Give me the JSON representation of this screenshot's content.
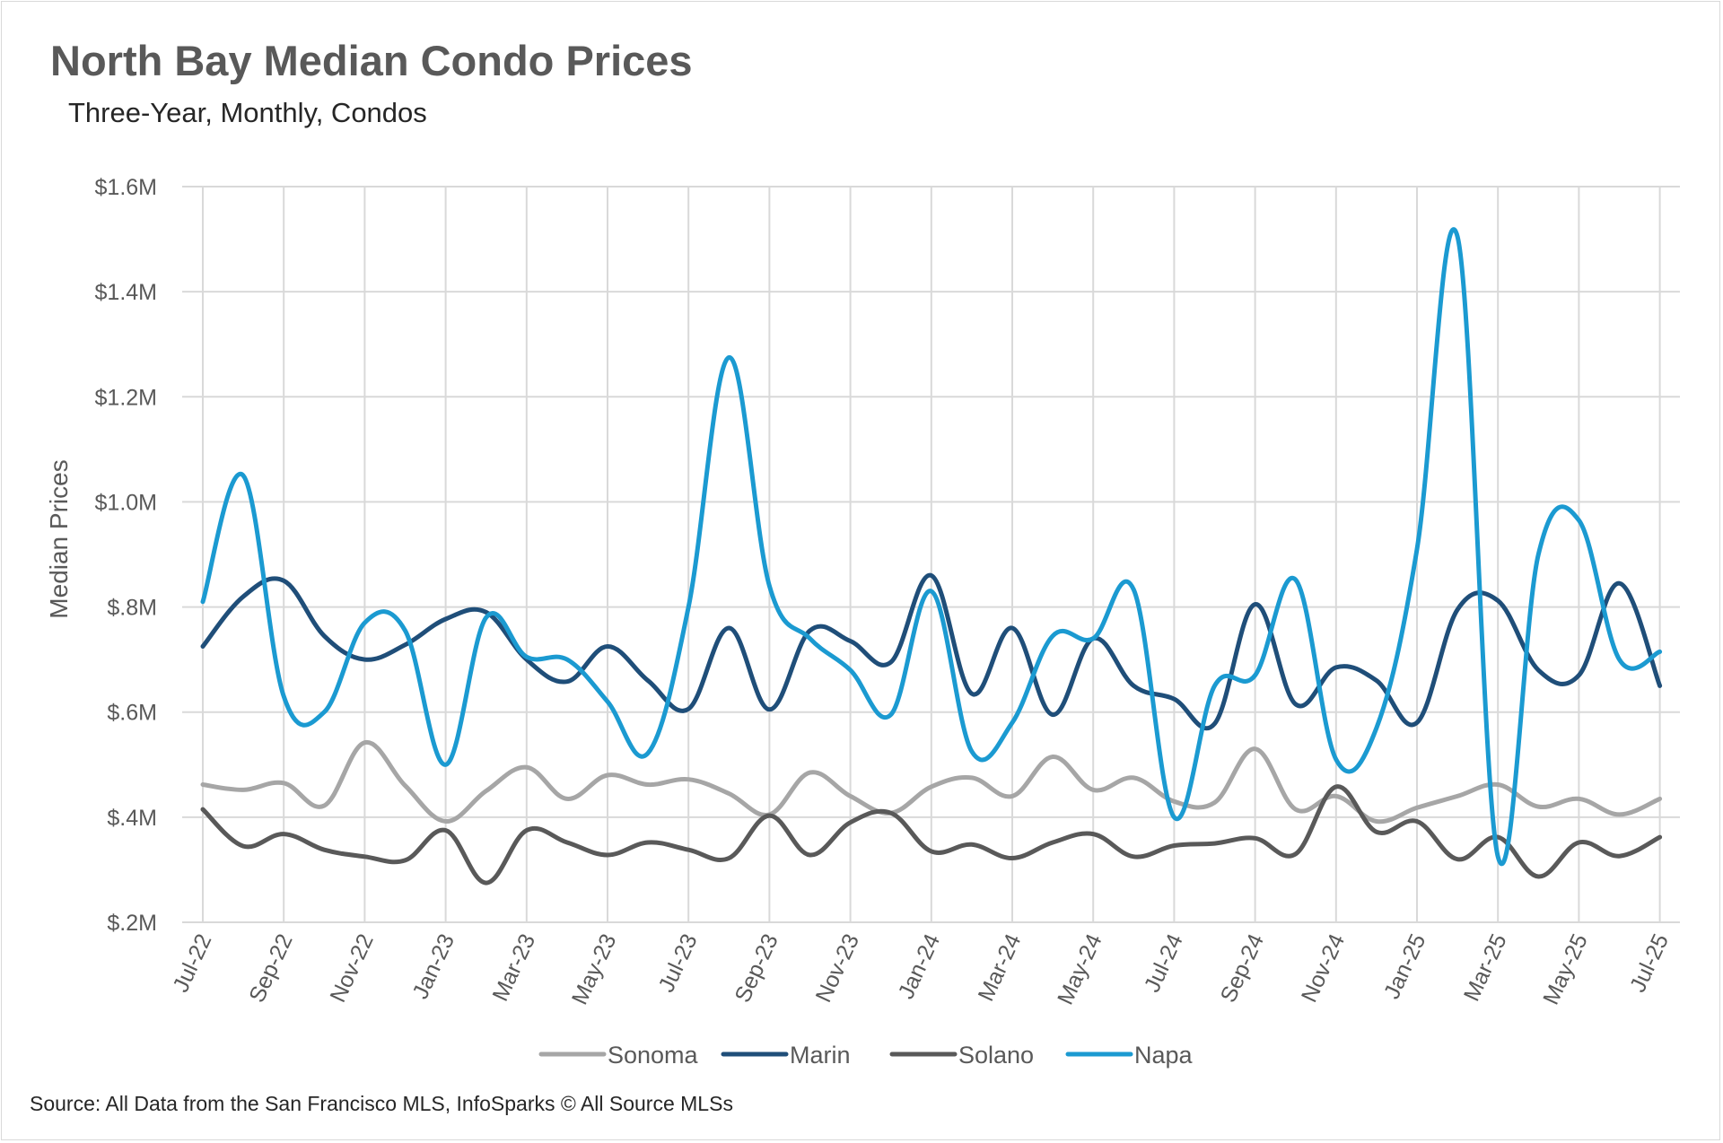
{
  "header": {
    "title": "North Bay Median Condo Prices",
    "subtitle": "Three-Year, Monthly, Condos"
  },
  "footer": {
    "source": "Source: All Data from the San Francisco MLS, InfoSparks © All Source MLSs"
  },
  "chart_data": {
    "type": "line",
    "title": "North Bay Median Condo Prices",
    "subtitle": "Three-Year, Monthly, Condos",
    "xlabel": "",
    "ylabel": "Median Prices",
    "ylim": [
      200000,
      1600000
    ],
    "y_ticks": [
      {
        "value": 200000,
        "label": "$.2M"
      },
      {
        "value": 400000,
        "label": "$.4M"
      },
      {
        "value": 600000,
        "label": "$.6M"
      },
      {
        "value": 800000,
        "label": "$.8M"
      },
      {
        "value": 1000000,
        "label": "$1.0M"
      },
      {
        "value": 1200000,
        "label": "$1.2M"
      },
      {
        "value": 1400000,
        "label": "$1.4M"
      },
      {
        "value": 1600000,
        "label": "$1.6M"
      }
    ],
    "x": [
      "2022-07",
      "2022-08",
      "2022-09",
      "2022-10",
      "2022-11",
      "2022-12",
      "2023-01",
      "2023-02",
      "2023-03",
      "2023-04",
      "2023-05",
      "2023-06",
      "2023-07",
      "2023-08",
      "2023-09",
      "2023-10",
      "2023-11",
      "2023-12",
      "2024-01",
      "2024-02",
      "2024-03",
      "2024-04",
      "2024-05",
      "2024-06",
      "2024-07",
      "2024-08",
      "2024-09",
      "2024-10",
      "2024-11",
      "2024-12",
      "2025-01",
      "2025-02",
      "2025-03",
      "2025-04",
      "2025-05",
      "2025-06",
      "2025-07"
    ],
    "x_tick_labels": [
      "Jul-22",
      "Sep-22",
      "Nov-22",
      "Jan-23",
      "Mar-23",
      "May-23",
      "Jul-23",
      "Sep-23",
      "Nov-23",
      "Jan-24",
      "Mar-24",
      "May-24",
      "Jul-24",
      "Sep-24",
      "Nov-24",
      "Jan-25",
      "Mar-25",
      "May-25",
      "Jul-25"
    ],
    "grid": true,
    "legend_position": "bottom",
    "series": [
      {
        "name": "Sonoma",
        "color": "#a6a6a6",
        "values": [
          462000,
          452000,
          465000,
          422000,
          542000,
          460000,
          392000,
          450000,
          495000,
          435000,
          480000,
          462000,
          472000,
          445000,
          405000,
          485000,
          440000,
          408000,
          458000,
          475000,
          440000,
          515000,
          452000,
          475000,
          430000,
          428000,
          530000,
          415000,
          440000,
          392000,
          418000,
          440000,
          462000,
          420000,
          435000,
          405000,
          435000
        ]
      },
      {
        "name": "Marin",
        "color": "#1f4e79",
        "values": [
          725000,
          820000,
          850000,
          745000,
          700000,
          728000,
          777000,
          790000,
          700000,
          658000,
          725000,
          660000,
          606000,
          760000,
          605000,
          755000,
          735000,
          695000,
          860000,
          635000,
          760000,
          595000,
          740000,
          650000,
          625000,
          578000,
          805000,
          615000,
          685000,
          660000,
          580000,
          795000,
          812000,
          680000,
          670000,
          845000,
          650000
        ]
      },
      {
        "name": "Solano",
        "color": "#595959",
        "values": [
          415000,
          345000,
          368000,
          338000,
          325000,
          318000,
          375000,
          275000,
          375000,
          352000,
          328000,
          352000,
          338000,
          322000,
          403000,
          328000,
          390000,
          408000,
          335000,
          348000,
          322000,
          352000,
          368000,
          325000,
          346000,
          350000,
          360000,
          330000,
          458000,
          372000,
          392000,
          320000,
          362000,
          287000,
          352000,
          326000,
          362000
        ]
      },
      {
        "name": "Napa",
        "color": "#1b9ad1",
        "values": [
          810000,
          1050000,
          630000,
          600000,
          770000,
          755000,
          500000,
          780000,
          705000,
          700000,
          620000,
          522000,
          800000,
          1275000,
          840000,
          740000,
          680000,
          595000,
          830000,
          525000,
          580000,
          745000,
          740000,
          833000,
          400000,
          650000,
          670000,
          852000,
          510000,
          570000,
          910000,
          1505000,
          325000,
          900000,
          965000,
          700000,
          715000
        ]
      }
    ]
  }
}
